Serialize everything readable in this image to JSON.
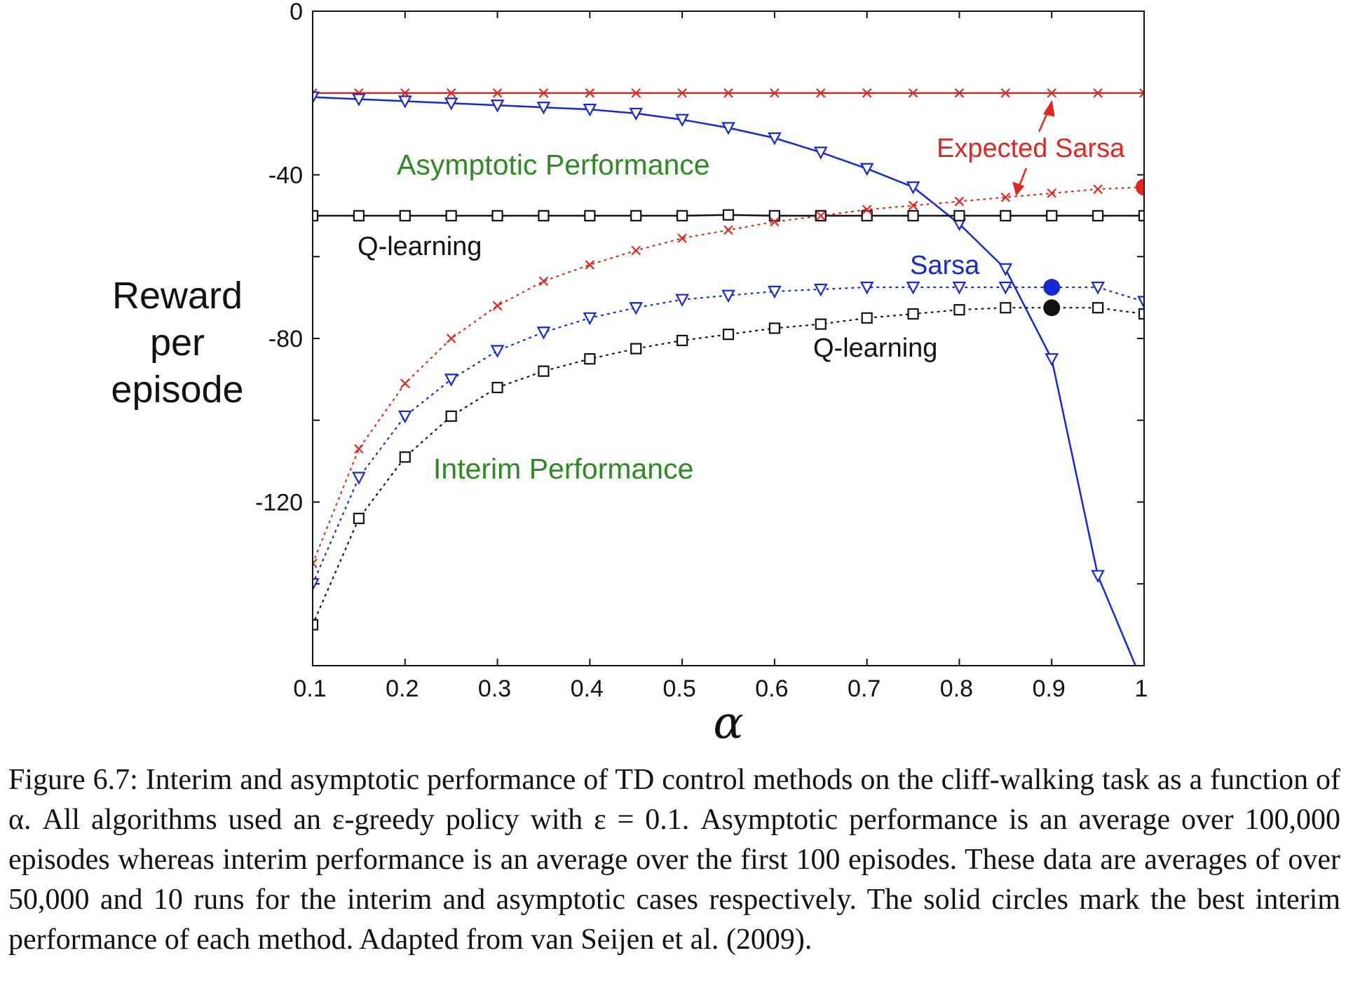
{
  "chart_data": {
    "type": "line",
    "xlabel": "α",
    "ylabel": [
      "Reward",
      "per",
      "episode"
    ],
    "xlim": [
      0.1,
      1.0
    ],
    "ylim": [
      -160,
      0
    ],
    "x_ticks": [
      "0.1",
      "0.2",
      "0.3",
      "0.4",
      "0.5",
      "0.6",
      "0.7",
      "0.8",
      "0.9",
      "1"
    ],
    "y_ticks": [
      "0",
      "-40",
      "-80",
      "-120"
    ],
    "x": [
      0.1,
      0.15,
      0.2,
      0.25,
      0.3,
      0.35,
      0.4,
      0.45,
      0.5,
      0.55,
      0.6,
      0.65,
      0.7,
      0.75,
      0.8,
      0.85,
      0.9,
      0.95,
      1.0
    ],
    "series": [
      {
        "group": "asymptotic",
        "method": "Expected Sarsa",
        "color": "#e0281e",
        "marker": "x",
        "line": "solid",
        "values": [
          -20,
          -20,
          -20,
          -20,
          -20,
          -20,
          -20,
          -20,
          -20,
          -20,
          -20,
          -20,
          -20,
          -20,
          -20,
          -20,
          -20,
          -20,
          -20
        ]
      },
      {
        "group": "asymptotic",
        "method": "Sarsa",
        "color": "#1428d8",
        "marker": "triangle-down",
        "line": "solid",
        "values": [
          -21,
          -21.5,
          -22,
          -22.5,
          -23,
          -23.5,
          -24,
          -25,
          -26.5,
          -28.5,
          -31,
          -34.5,
          -38.5,
          -43,
          -52,
          -63,
          -85,
          -138,
          -165
        ]
      },
      {
        "group": "asymptotic",
        "method": "Q-learning",
        "color": "#111111",
        "marker": "square",
        "line": "solid",
        "values": [
          -50,
          -50,
          -50,
          -50,
          -50,
          -50,
          -50,
          -50,
          -50,
          -49.8,
          -50,
          -50,
          -50,
          -50,
          -50,
          -50,
          -50,
          -50,
          -50
        ]
      },
      {
        "group": "interim",
        "method": "Expected Sarsa",
        "color": "#e0281e",
        "marker": "x",
        "line": "dotted",
        "values": [
          -135,
          -107,
          -91,
          -80,
          -72,
          -66,
          -62,
          -58.5,
          -55.5,
          -53.5,
          -51.5,
          -50,
          -48.5,
          -47.5,
          -46.5,
          -45.5,
          -44.5,
          -43.5,
          -43
        ]
      },
      {
        "group": "interim",
        "method": "Sarsa",
        "color": "#1428d8",
        "marker": "triangle-down",
        "line": "dotted",
        "values": [
          -140,
          -114,
          -99,
          -90,
          -83,
          -78.5,
          -75,
          -72.5,
          -70.5,
          -69.5,
          -68.5,
          -68,
          -67.5,
          -67.5,
          -67.5,
          -67.5,
          -67.5,
          -67.5,
          -71
        ]
      },
      {
        "group": "interim",
        "method": "Q-learning",
        "color": "#111111",
        "marker": "square",
        "line": "dotted",
        "values": [
          -150,
          -124,
          -109,
          -99,
          -92,
          -88,
          -85,
          -82.5,
          -80.5,
          -79,
          -77.5,
          -76.5,
          -75,
          -74,
          -73,
          -72.5,
          -72.5,
          -72.5,
          -74
        ]
      }
    ],
    "best_interim": [
      {
        "method": "Expected Sarsa",
        "color": "#e0281e",
        "x": 1.0,
        "y": -43
      },
      {
        "method": "Sarsa",
        "color": "#1428d8",
        "x": 0.9,
        "y": -67.5
      },
      {
        "method": "Q-learning",
        "color": "#111111",
        "x": 0.9,
        "y": -72.5
      }
    ],
    "annotations": {
      "asymptotic_performance": "Asymptotic Performance",
      "interim_performance": "Interim Performance",
      "expected_sarsa": "Expected Sarsa",
      "sarsa": "Sarsa",
      "q_learning_asymptotic": "Q-learning",
      "q_learning_interim": "Q-learning"
    },
    "annotation_colors": {
      "green": "#2e8b22",
      "red": "#e0281e",
      "blue": "#1428d8",
      "black": "#111111"
    }
  },
  "caption": "Figure 6.7: Interim and asymptotic performance of TD control methods on the cliff-walking task as a function of α. All algorithms used an ε-greedy policy with ε = 0.1. Asymptotic performance is an average over 100,000 episodes whereas interim performance is an average over the first 100 episodes. These data are averages of over 50,000 and 10 runs for the interim and asymptotic cases respectively. The solid circles mark the best interim performance of each method. Adapted from van Seijen et al. (2009)."
}
